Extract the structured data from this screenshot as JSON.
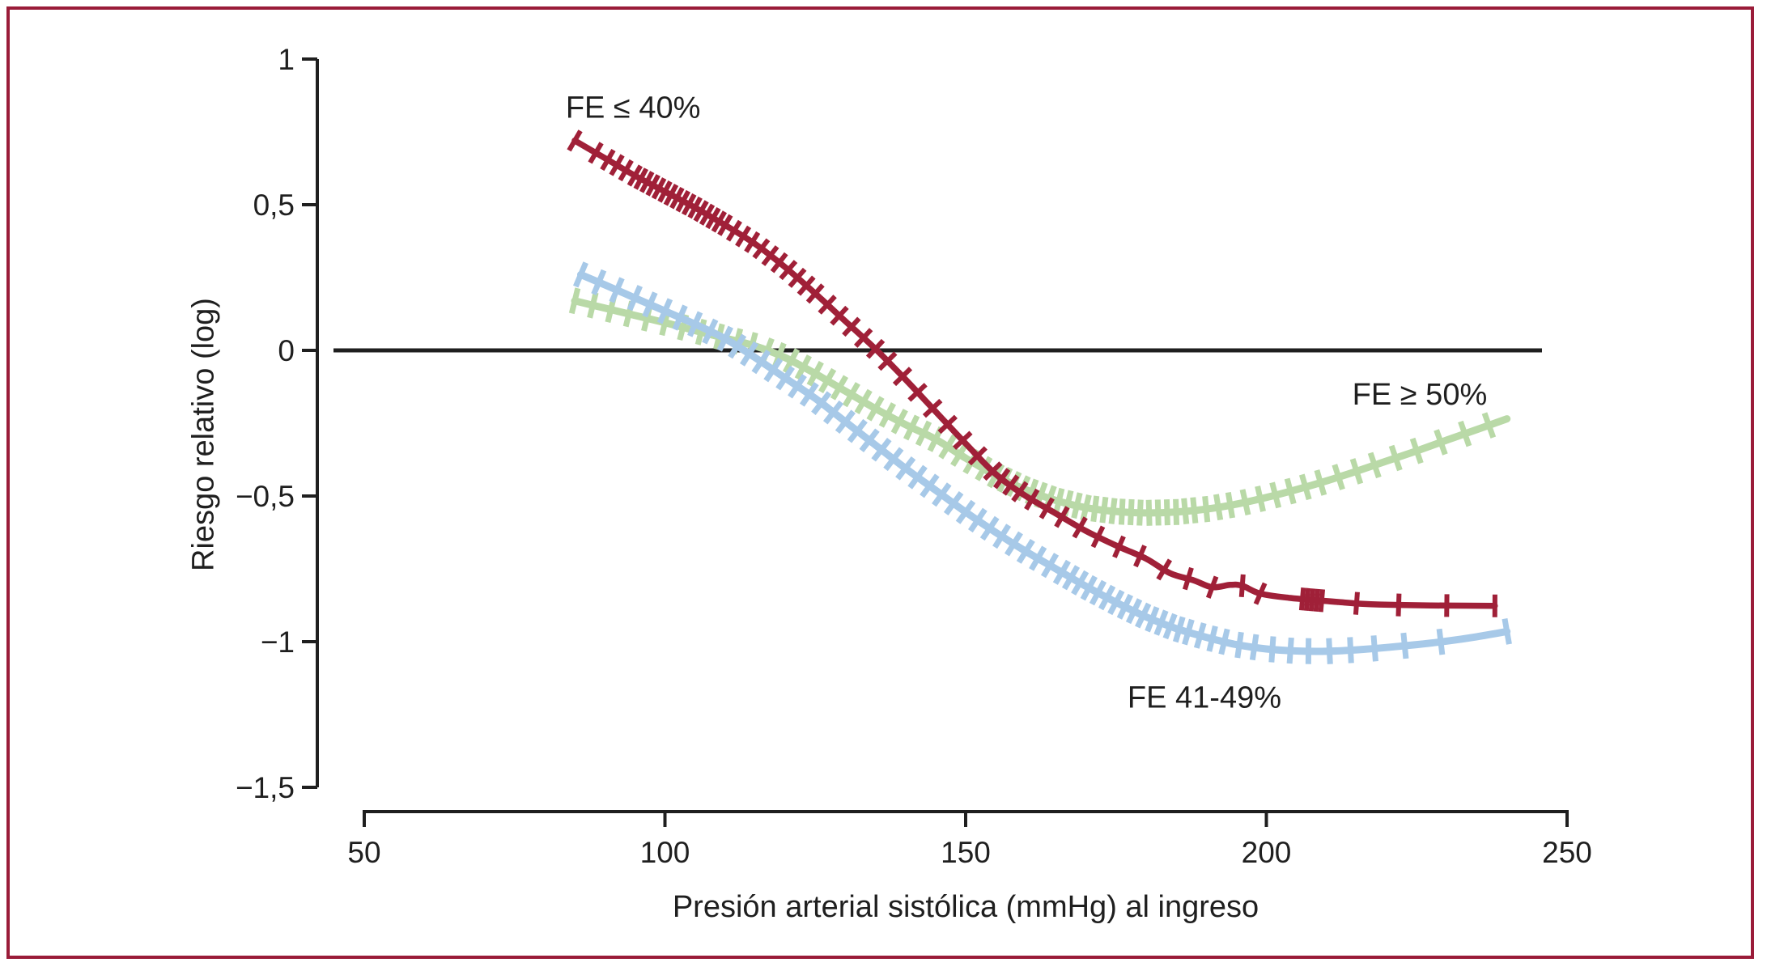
{
  "figure": {
    "background": "#ffffff",
    "border_color": "#9a1c39",
    "axis_color": "#1f1f1f",
    "text_color": "#1f1f1f"
  },
  "chart_data": {
    "type": "line",
    "title": "",
    "xlabel": "Presión arterial sistólica (mmHg) al ingreso",
    "ylabel": "Riesgo relativo (log)",
    "xlim": [
      50,
      250
    ],
    "ylim": [
      -1.5,
      1
    ],
    "grid": false,
    "legend_position": "labels-on-plot",
    "x_ticks": {
      "values": [
        50,
        100,
        150,
        200,
        250
      ],
      "labels": [
        "50",
        "100",
        "150",
        "200",
        "250"
      ]
    },
    "y_ticks": {
      "values": [
        1,
        0.5,
        0,
        -0.5,
        -1,
        -1.5
      ],
      "labels": [
        "1",
        "0,5",
        "0",
        "−0,5",
        "−1",
        "−1,5"
      ]
    },
    "reference_line": {
      "y": 0,
      "color": "#1f1f1f"
    },
    "series": [
      {
        "name": "FE ≤ 40%",
        "color": "#a02038",
        "line_width": 7.5,
        "label_anchor": {
          "x": 94.7,
          "y": 0.835
        },
        "points": [
          [
            85,
            0.72
          ],
          [
            90,
            0.66
          ],
          [
            95,
            0.6
          ],
          [
            100,
            0.545
          ],
          [
            105,
            0.49
          ],
          [
            110,
            0.43
          ],
          [
            115,
            0.365
          ],
          [
            120,
            0.285
          ],
          [
            125,
            0.195
          ],
          [
            130,
            0.1
          ],
          [
            135,
            0.005
          ],
          [
            140,
            -0.1
          ],
          [
            145,
            -0.21
          ],
          [
            150,
            -0.32
          ],
          [
            155,
            -0.425
          ],
          [
            160,
            -0.5
          ],
          [
            165,
            -0.56
          ],
          [
            170,
            -0.62
          ],
          [
            175,
            -0.67
          ],
          [
            180,
            -0.715
          ],
          [
            184,
            -0.765
          ],
          [
            188,
            -0.79
          ],
          [
            191,
            -0.813
          ],
          [
            194,
            -0.805
          ],
          [
            196,
            -0.808
          ],
          [
            199,
            -0.835
          ],
          [
            204,
            -0.85
          ],
          [
            208,
            -0.857
          ],
          [
            212,
            -0.864
          ],
          [
            216,
            -0.87
          ],
          [
            222,
            -0.874
          ],
          [
            230,
            -0.876
          ],
          [
            238,
            -0.877
          ]
        ],
        "rug_x": [
          85,
          88.5,
          90.5,
          92,
          93.5,
          95,
          96,
          97,
          98,
          99,
          100,
          101,
          102,
          103,
          104,
          105,
          106,
          107,
          108,
          109,
          110,
          111.5,
          113,
          114.5,
          116,
          117.5,
          119,
          120.5,
          122,
          123.5,
          125,
          127,
          129,
          131,
          133,
          135,
          137,
          139.5,
          142,
          144.5,
          147,
          149.5,
          152,
          154.5,
          156,
          157.5,
          159,
          161,
          163.5,
          166,
          169,
          172,
          175.5,
          179,
          183,
          187,
          191,
          196,
          199,
          206,
          206.8,
          207.6,
          208.4,
          209.2,
          215,
          222,
          230,
          238
        ]
      },
      {
        "name": "FE 41-49%",
        "color": "#a7c9e8",
        "line_width": 9,
        "label_anchor": {
          "x": 189.7,
          "y": -1.19
        },
        "points": [
          [
            86,
            0.26
          ],
          [
            90,
            0.225
          ],
          [
            95,
            0.18
          ],
          [
            100,
            0.135
          ],
          [
            105,
            0.09
          ],
          [
            110,
            0.04
          ],
          [
            115,
            -0.025
          ],
          [
            120,
            -0.095
          ],
          [
            125,
            -0.165
          ],
          [
            130,
            -0.245
          ],
          [
            135,
            -0.325
          ],
          [
            140,
            -0.405
          ],
          [
            145,
            -0.48
          ],
          [
            150,
            -0.555
          ],
          [
            155,
            -0.625
          ],
          [
            160,
            -0.69
          ],
          [
            165,
            -0.75
          ],
          [
            170,
            -0.81
          ],
          [
            175,
            -0.865
          ],
          [
            180,
            -0.915
          ],
          [
            185,
            -0.955
          ],
          [
            190,
            -0.985
          ],
          [
            195,
            -1.01
          ],
          [
            200,
            -1.025
          ],
          [
            205,
            -1.032
          ],
          [
            210,
            -1.033
          ],
          [
            215,
            -1.028
          ],
          [
            220,
            -1.02
          ],
          [
            225,
            -1.01
          ],
          [
            230,
            -0.998
          ],
          [
            235,
            -0.983
          ],
          [
            240,
            -0.965
          ]
        ],
        "rug_x": [
          86,
          89,
          92,
          95,
          97.5,
          100,
          102.5,
          105,
          107.5,
          110,
          112,
          114,
          116,
          118,
          120,
          122,
          124,
          126,
          128,
          130,
          132,
          134,
          136,
          138,
          140,
          142,
          144,
          146,
          148,
          150,
          152,
          154,
          156,
          158,
          160,
          162,
          164,
          166,
          167.5,
          169,
          170.5,
          172,
          173.5,
          175,
          176.5,
          178,
          179.5,
          181,
          182.5,
          184,
          185.5,
          187,
          189,
          191,
          193,
          195.5,
          198,
          201,
          204,
          207,
          210.5,
          214,
          218,
          223,
          229,
          240
        ]
      },
      {
        "name": "FE ≥ 50%",
        "color": "#b9d9a7",
        "line_width": 9,
        "label_anchor": {
          "x": 225.5,
          "y": -0.15
        },
        "points": [
          [
            85,
            0.17
          ],
          [
            90,
            0.145
          ],
          [
            95,
            0.12
          ],
          [
            100,
            0.095
          ],
          [
            105,
            0.068
          ],
          [
            110,
            0.042
          ],
          [
            115,
            0.015
          ],
          [
            120,
            -0.025
          ],
          [
            125,
            -0.08
          ],
          [
            130,
            -0.14
          ],
          [
            135,
            -0.2
          ],
          [
            140,
            -0.255
          ],
          [
            145,
            -0.305
          ],
          [
            150,
            -0.37
          ],
          [
            155,
            -0.43
          ],
          [
            160,
            -0.478
          ],
          [
            165,
            -0.515
          ],
          [
            170,
            -0.54
          ],
          [
            175,
            -0.553
          ],
          [
            180,
            -0.558
          ],
          [
            185,
            -0.555
          ],
          [
            190,
            -0.545
          ],
          [
            195,
            -0.528
          ],
          [
            200,
            -0.505
          ],
          [
            205,
            -0.478
          ],
          [
            210,
            -0.448
          ],
          [
            215,
            -0.415
          ],
          [
            220,
            -0.38
          ],
          [
            225,
            -0.345
          ],
          [
            230,
            -0.308
          ],
          [
            235,
            -0.272
          ],
          [
            240,
            -0.235
          ]
        ],
        "rug_x": [
          85,
          88,
          91,
          94,
          97,
          100,
          103,
          106,
          109,
          112,
          114.5,
          117,
          119,
          121,
          123,
          125,
          127,
          129,
          131,
          133,
          135,
          137,
          139,
          141,
          143,
          145,
          147,
          149,
          151,
          153,
          155,
          156.5,
          158,
          159.5,
          161,
          162.5,
          164,
          165.5,
          167,
          168.5,
          170,
          171.5,
          173,
          174.5,
          176,
          177.5,
          179,
          180.5,
          182,
          183.5,
          185,
          186.5,
          188,
          190,
          192,
          194,
          196.5,
          199,
          201.5,
          204,
          206.5,
          209,
          212,
          215,
          218,
          221.5,
          225,
          229,
          233,
          237
        ]
      }
    ]
  }
}
